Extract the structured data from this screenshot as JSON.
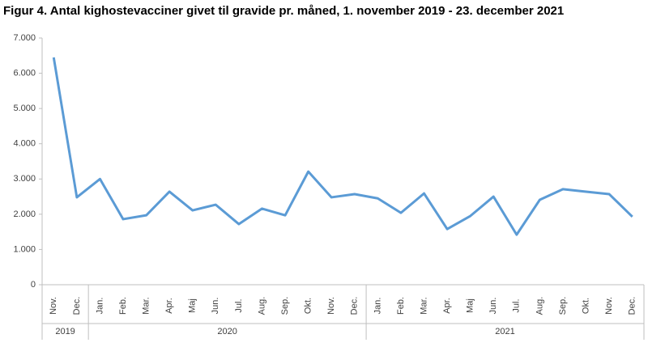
{
  "chart_data": {
    "type": "line",
    "title": "Figur 4. Antal kighostevacciner givet til gravide pr. måned, 1. november 2019 - 23. december 2021",
    "category_groups": [
      {
        "label": "2019",
        "categories": [
          "Nov.",
          "Dec."
        ]
      },
      {
        "label": "2020",
        "categories": [
          "Jan.",
          "Feb.",
          "Mar.",
          "Apr.",
          "Maj",
          "Jun.",
          "Jul.",
          "Aug.",
          "Sep.",
          "Okt.",
          "Nov.",
          "Dec."
        ]
      },
      {
        "label": "2021",
        "categories": [
          "Jan.",
          "Feb.",
          "Mar.",
          "Apr.",
          "Maj",
          "Jun.",
          "Jul.",
          "Aug.",
          "Sep.",
          "Okt.",
          "Nov.",
          "Dec."
        ]
      }
    ],
    "series": [
      {
        "color": "#5b9bd5",
        "values": [
          6450,
          2480,
          3000,
          1860,
          1970,
          2640,
          2110,
          2270,
          1720,
          2160,
          1970,
          3210,
          2480,
          2570,
          2450,
          2040,
          2590,
          1580,
          1950,
          2500,
          1420,
          2410,
          2710,
          2640,
          2570,
          1930
        ]
      }
    ],
    "ylim": [
      0,
      7000
    ],
    "yticks": [
      0,
      {
        "value": 1000,
        "label": "1.000"
      },
      {
        "value": 2000,
        "label": "2.000"
      },
      {
        "value": 3000,
        "label": "3.000"
      },
      {
        "value": 4000,
        "label": "4.000"
      },
      {
        "value": 5000,
        "label": "5.000"
      },
      {
        "value": 6000,
        "label": "6.000"
      },
      {
        "value": 7000,
        "label": "7.000"
      }
    ],
    "grid": false
  }
}
